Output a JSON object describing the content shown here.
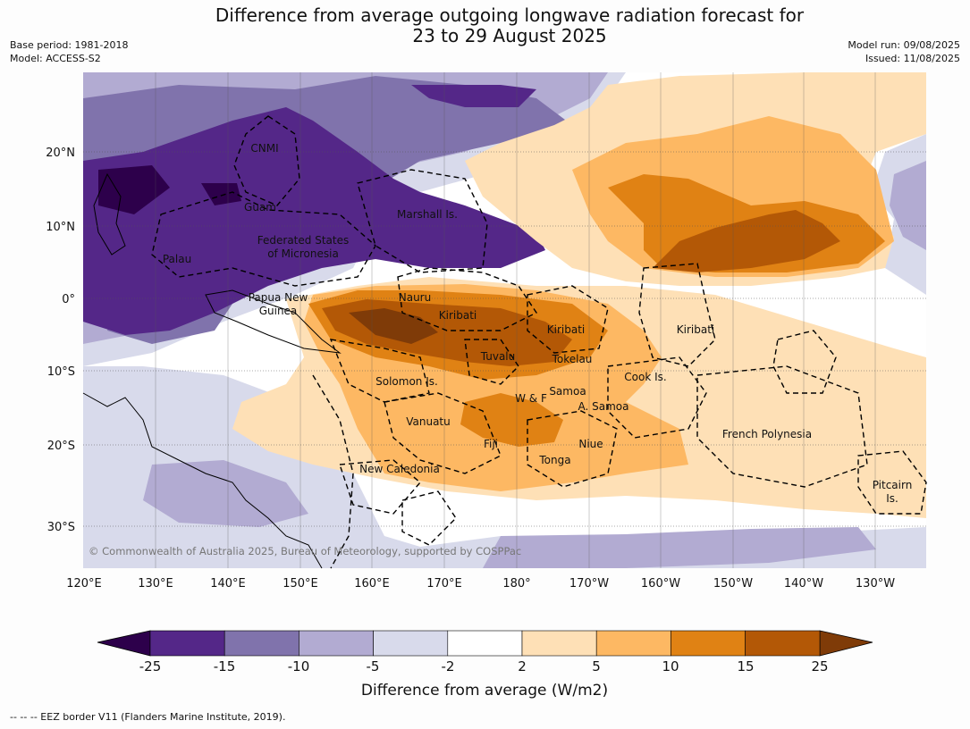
{
  "title": {
    "line1": "Difference from average outgoing longwave radiation forecast for",
    "line2": "23 to 29 August 2025"
  },
  "meta": {
    "base_period": "Base period: 1981-2018",
    "model": "Model: ACCESS-S2",
    "model_run": "Model run: 09/08/2025",
    "issued": "Issued: 11/08/2025"
  },
  "axes": {
    "lon_labels": [
      "120°E",
      "130°E",
      "140°E",
      "150°E",
      "160°E",
      "170°E",
      "180°",
      "170°W",
      "160°W",
      "150°W",
      "140°W",
      "130°W"
    ],
    "lat_labels": [
      "20°N",
      "10°N",
      "0°",
      "10°S",
      "20°S",
      "30°S"
    ]
  },
  "places": [
    "CNMI",
    "Guam",
    "Marshall Is.",
    "Federated States",
    "of Micronesia",
    "Palau",
    "Papua New",
    "Guinea",
    "Nauru",
    "Kiribati",
    "Kiribati",
    "Kiribati",
    "Tuvalu",
    "Tokelau",
    "Solomon Is.",
    "Cook Is.",
    "Samoa",
    "W & F",
    "A. Samoa",
    "Vanuatu",
    "Fiji",
    "Niue",
    "Tonga",
    "French Polynesia",
    "New Caledonia",
    "Pitcairn",
    "Is."
  ],
  "copyright": "© Commonwealth of Australia 2025, Bureau of Meteorology, supported by COSPPac",
  "colorbar": {
    "ticks": [
      "-25",
      "-15",
      "-10",
      "-5",
      "-2",
      "2",
      "5",
      "10",
      "15",
      "25"
    ],
    "colors": [
      "#2d004b",
      "#542788",
      "#8073ac",
      "#b2abd2",
      "#d8daeb",
      "#ffffff",
      "#fee0b6",
      "#fdb863",
      "#e08214",
      "#b35806",
      "#7f3b08"
    ],
    "label": "Difference from average (W/m2)"
  },
  "footnote": "--  --  -- EEZ border V11 (Flanders Marine Institute, 2019)."
}
